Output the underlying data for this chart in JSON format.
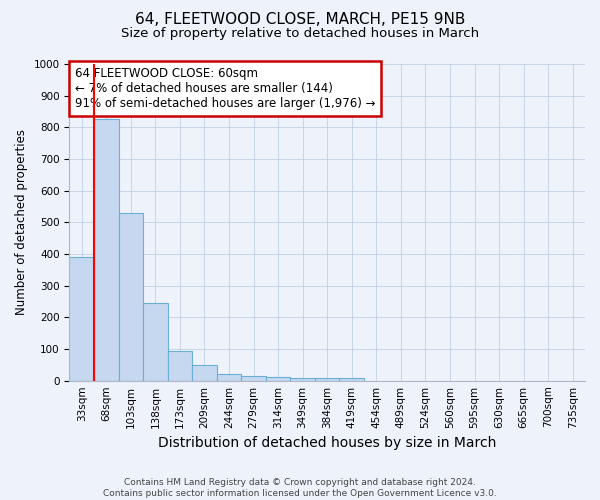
{
  "title1": "64, FLEETWOOD CLOSE, MARCH, PE15 9NB",
  "title2": "Size of property relative to detached houses in March",
  "xlabel": "Distribution of detached houses by size in March",
  "ylabel": "Number of detached properties",
  "bar_color": "#c5d8f0",
  "bar_edge_color": "#6baed6",
  "background_color": "#eef2fb",
  "annotation_box_color": "#ffffff",
  "annotation_border_color": "#cc0000",
  "annotation_text_line1": "64 FLEETWOOD CLOSE: 60sqm",
  "annotation_text_line2": "← 7% of detached houses are smaller (144)",
  "annotation_text_line3": "91% of semi-detached houses are larger (1,976) →",
  "footer_line1": "Contains HM Land Registry data © Crown copyright and database right 2024.",
  "footer_line2": "Contains public sector information licensed under the Open Government Licence v3.0.",
  "ylim": [
    0,
    1000
  ],
  "yticks": [
    0,
    100,
    200,
    300,
    400,
    500,
    600,
    700,
    800,
    900,
    1000
  ],
  "categories": [
    "33sqm",
    "68sqm",
    "103sqm",
    "138sqm",
    "173sqm",
    "209sqm",
    "244sqm",
    "279sqm",
    "314sqm",
    "349sqm",
    "384sqm",
    "419sqm",
    "454sqm",
    "489sqm",
    "524sqm",
    "560sqm",
    "595sqm",
    "630sqm",
    "665sqm",
    "700sqm",
    "735sqm"
  ],
  "values": [
    390,
    825,
    530,
    245,
    95,
    50,
    22,
    15,
    13,
    10,
    8,
    8,
    0,
    0,
    0,
    0,
    0,
    0,
    0,
    0,
    0
  ],
  "red_line_x": 0.5,
  "title1_fontsize": 11,
  "title2_fontsize": 9.5,
  "xlabel_fontsize": 10,
  "ylabel_fontsize": 8.5,
  "tick_fontsize": 7.5,
  "annotation_fontsize": 8.5,
  "footer_fontsize": 6.5
}
